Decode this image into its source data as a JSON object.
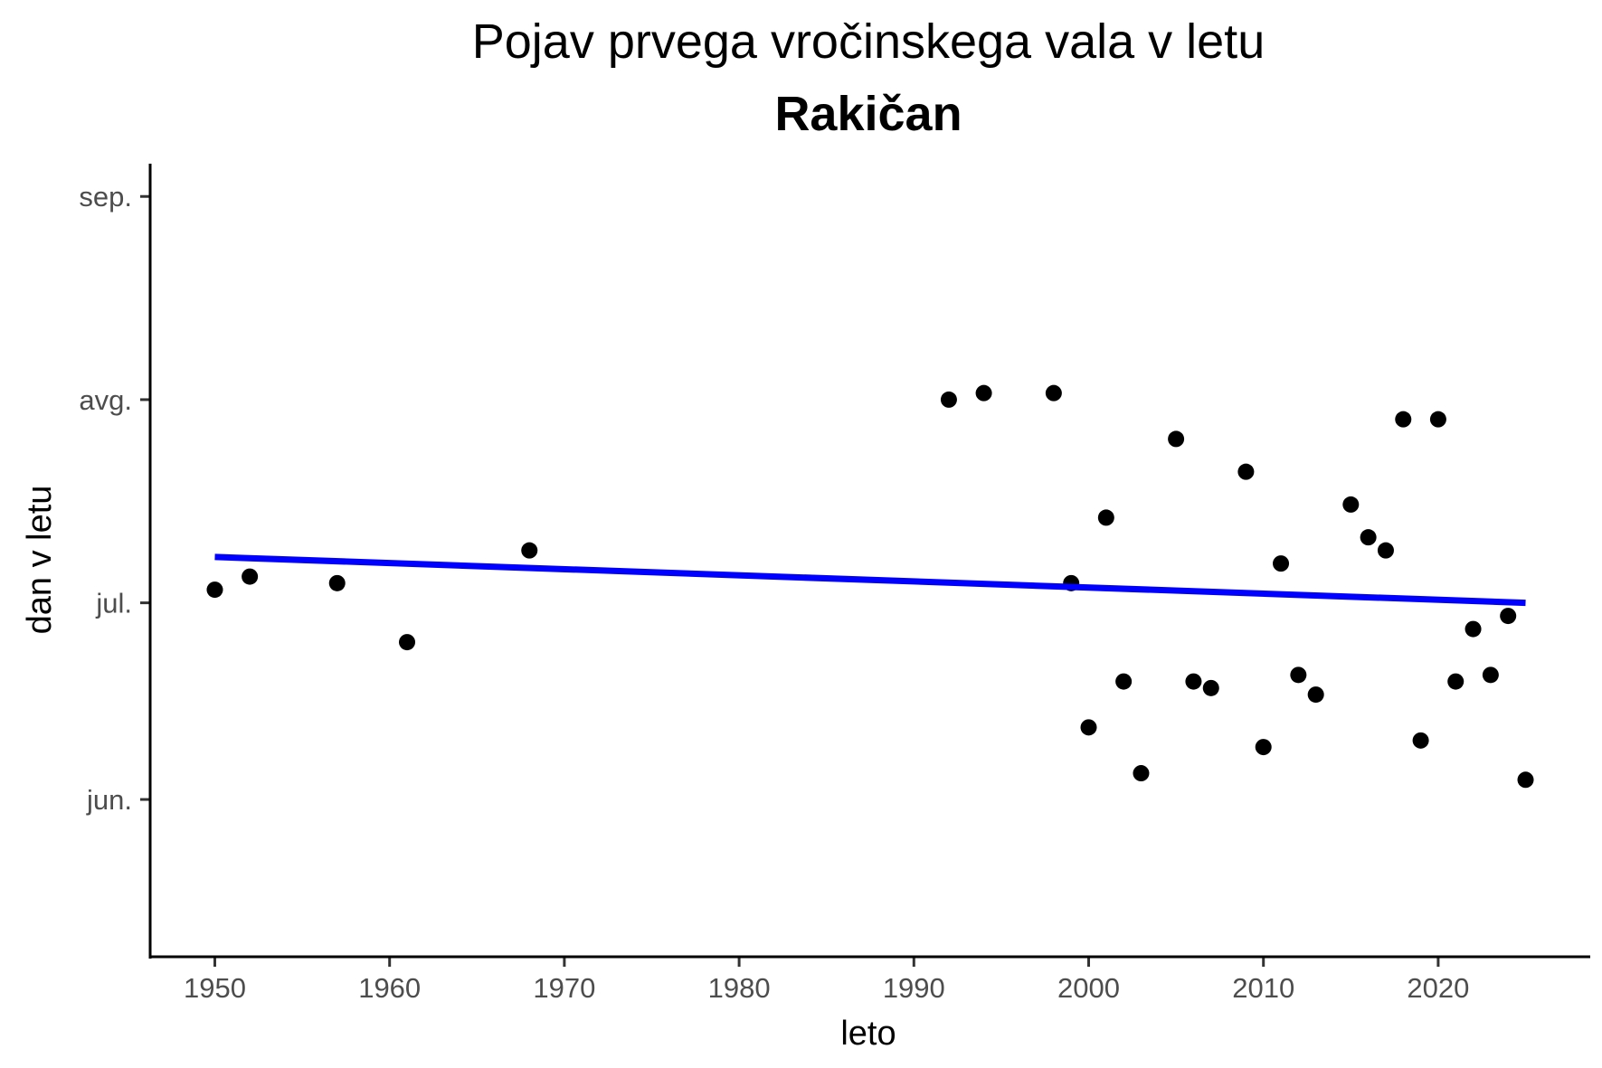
{
  "chart_data": {
    "type": "scatter",
    "title": "Pojav prvega vročinskega vala v letu",
    "subtitle": "Rakičan",
    "xlabel": "leto",
    "ylabel": "dan v letu",
    "xlim": [
      1946.3,
      2028.7
    ],
    "ylim": [
      "2025-05-08",
      "2025-09-06"
    ],
    "x_ticks": [
      1950,
      1960,
      1970,
      1980,
      1990,
      2000,
      2010,
      2020
    ],
    "y_ticks": [
      {
        "label": "jun.",
        "date": "2025-06-01"
      },
      {
        "label": "jul.",
        "date": "2025-07-01"
      },
      {
        "label": "avg.",
        "date": "2025-08-01"
      },
      {
        "label": "sep.",
        "date": "2025-09-01"
      }
    ],
    "grid": false,
    "point_color": "#000000",
    "trend_color": "#0000ff",
    "points": [
      {
        "x": 1950,
        "y": "2025-07-03"
      },
      {
        "x": 1952,
        "y": "2025-07-05"
      },
      {
        "x": 1957,
        "y": "2025-07-04"
      },
      {
        "x": 1961,
        "y": "2025-06-25"
      },
      {
        "x": 1968,
        "y": "2025-07-09"
      },
      {
        "x": 1992,
        "y": "2025-08-01"
      },
      {
        "x": 1994,
        "y": "2025-08-02"
      },
      {
        "x": 1998,
        "y": "2025-08-02"
      },
      {
        "x": 1999,
        "y": "2025-07-04"
      },
      {
        "x": 2000,
        "y": "2025-06-12"
      },
      {
        "x": 2001,
        "y": "2025-07-14"
      },
      {
        "x": 2002,
        "y": "2025-06-19"
      },
      {
        "x": 2003,
        "y": "2025-06-05"
      },
      {
        "x": 2005,
        "y": "2025-07-26"
      },
      {
        "x": 2006,
        "y": "2025-06-19"
      },
      {
        "x": 2007,
        "y": "2025-06-18"
      },
      {
        "x": 2009,
        "y": "2025-07-21"
      },
      {
        "x": 2010,
        "y": "2025-06-09"
      },
      {
        "x": 2011,
        "y": "2025-07-07"
      },
      {
        "x": 2012,
        "y": "2025-06-20"
      },
      {
        "x": 2013,
        "y": "2025-06-17"
      },
      {
        "x": 2015,
        "y": "2025-07-16"
      },
      {
        "x": 2016,
        "y": "2025-07-11"
      },
      {
        "x": 2017,
        "y": "2025-07-09"
      },
      {
        "x": 2018,
        "y": "2025-07-29"
      },
      {
        "x": 2019,
        "y": "2025-06-10"
      },
      {
        "x": 2020,
        "y": "2025-07-29"
      },
      {
        "x": 2021,
        "y": "2025-06-19"
      },
      {
        "x": 2022,
        "y": "2025-06-27"
      },
      {
        "x": 2023,
        "y": "2025-06-20"
      },
      {
        "x": 2024,
        "y": "2025-06-29"
      },
      {
        "x": 2025,
        "y": "2025-06-04"
      }
    ],
    "trend": [
      {
        "x": 1950,
        "y": "2025-07-08"
      },
      {
        "x": 2025,
        "y": "2025-07-01"
      }
    ]
  }
}
